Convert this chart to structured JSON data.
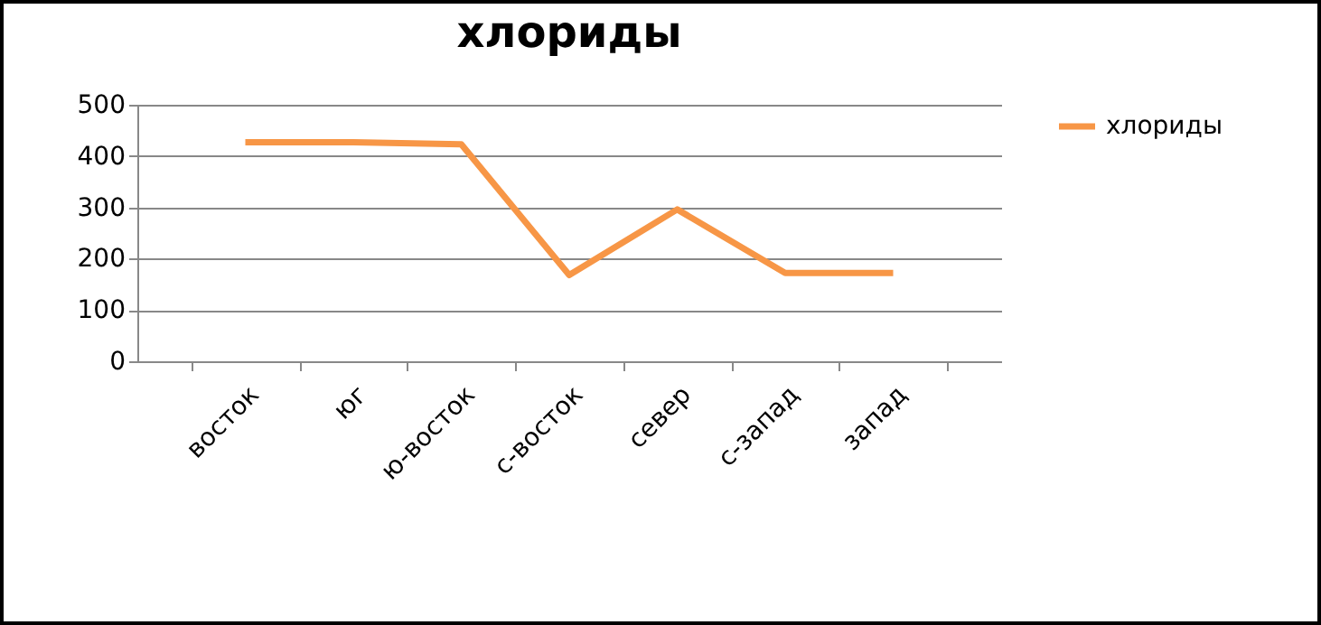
{
  "chart_data": {
    "type": "line",
    "title": "хлориды",
    "categories": [
      "восток",
      "юг",
      "ю-восток",
      "с-восток",
      "север",
      "с-запад",
      "запад"
    ],
    "series": [
      {
        "name": "хлориды",
        "color": "#f79646",
        "values": [
          427,
          427,
          423,
          168,
          296,
          172,
          172
        ]
      }
    ],
    "ylim": [
      0,
      500
    ],
    "yticks": [
      0,
      100,
      200,
      300,
      400,
      500
    ],
    "grid": "y",
    "legend": "right",
    "marker": "none"
  }
}
